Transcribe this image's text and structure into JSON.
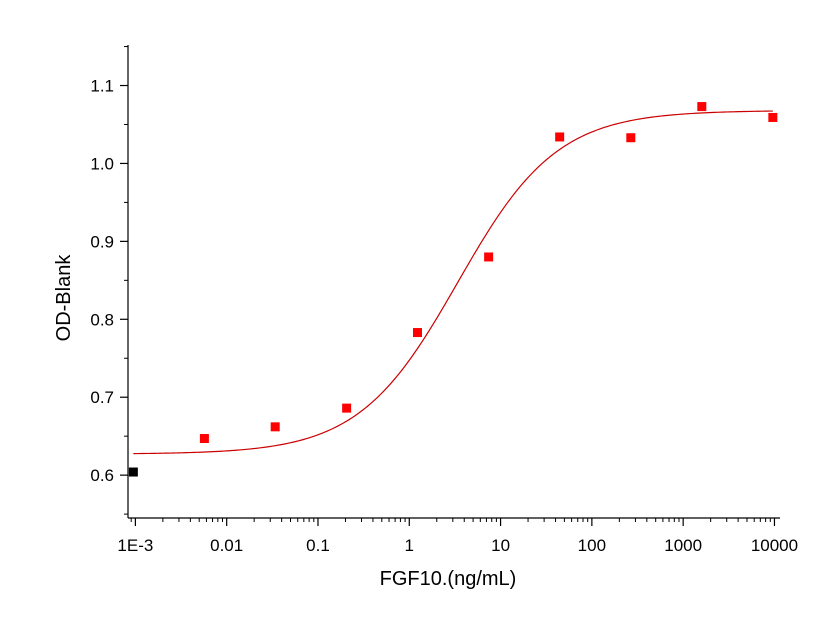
{
  "chart_data": {
    "type": "scatter",
    "xlabel": "FGF10.(ng/mL)",
    "ylabel": "OD-Blank",
    "xscale": "log",
    "xlim": [
      0.00083,
      11500
    ],
    "ylim": [
      0.545,
      1.152
    ],
    "x_ticks": [
      0.001,
      0.01,
      0.1,
      1,
      10,
      100,
      1000,
      10000
    ],
    "x_tick_labels": [
      "1E-3",
      "0.01",
      "0.1",
      "1",
      "10",
      "100",
      "1000",
      "10000"
    ],
    "y_ticks": [
      0.6,
      0.7,
      0.8,
      0.9,
      1.0,
      1.1
    ],
    "y_tick_labels": [
      "0.6",
      "0.7",
      "0.8",
      "0.9",
      "1.0",
      "1.1"
    ],
    "grid": false,
    "legend": "none",
    "series": [
      {
        "marker": "square",
        "color": "#ff0000",
        "x": [
          0.0057,
          0.034,
          0.206,
          1.23,
          7.4,
          44.4,
          267,
          1600,
          9600
        ],
        "y": [
          0.647,
          0.662,
          0.686,
          0.783,
          0.88,
          1.034,
          1.033,
          1.073,
          1.059
        ]
      },
      {
        "marker": "square",
        "color": "#000000",
        "x": [
          0.00095
        ],
        "y": [
          0.604
        ]
      }
    ],
    "fit": {
      "type": "four-parameter logistic",
      "color": "#cc0000",
      "bottom": 0.627,
      "top": 1.068,
      "ec50": 3.4,
      "hill": 0.8,
      "x_range": [
        0.00095,
        9600
      ]
    }
  }
}
